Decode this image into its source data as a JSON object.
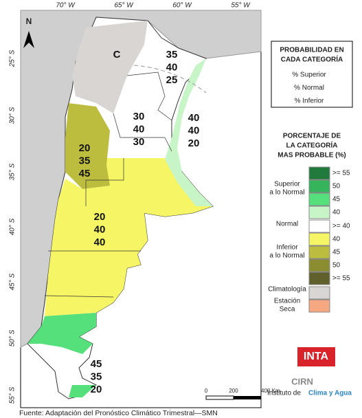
{
  "map": {
    "lon_ticks": [
      "70° W",
      "65° W",
      "60° W",
      "55° W"
    ],
    "lat_ticks": [
      "25° S",
      "30° S",
      "35° S",
      "40° S",
      "45° S",
      "50° S",
      "55° S"
    ],
    "north": "N",
    "regions": [
      {
        "lines": [
          "C"
        ]
      },
      {
        "lines": [
          35,
          40,
          25
        ]
      },
      {
        "lines": [
          30,
          40,
          30
        ]
      },
      {
        "lines": [
          40,
          40,
          20
        ]
      },
      {
        "lines": [
          20,
          35,
          45
        ]
      },
      {
        "lines": [
          20,
          40,
          40
        ]
      },
      {
        "lines": [
          45,
          35,
          20
        ]
      }
    ],
    "scale_bar": [
      "0",
      "200",
      "400 Km"
    ]
  },
  "legend": {
    "box_title": [
      "PROBABILIDAD EN",
      "CADA CATEGORÍA"
    ],
    "box_items": [
      "% Superior",
      "% Normal",
      "% Inferior"
    ],
    "title": [
      "PORCENTAJE DE",
      "LA CATEGORÍA",
      "MAS PROBABLE (%)"
    ],
    "swatches": [
      {
        "label": ">= 55",
        "color": "#1f7a3c"
      },
      {
        "label": "50",
        "color": "#35b45c"
      },
      {
        "label": "45",
        "color": "#55e07c"
      },
      {
        "label": "40",
        "color": "#c8f5c8"
      },
      {
        "label": ">= 40",
        "color": "#ffffff"
      },
      {
        "label": "40",
        "color": "#f5f566"
      },
      {
        "label": "45",
        "color": "#bcbc3e"
      },
      {
        "label": "50",
        "color": "#8c8c30"
      },
      {
        "label": ">= 55",
        "color": "#60602c"
      },
      {
        "label": null,
        "color": "#d9d5d2"
      },
      {
        "label": null,
        "color": "#f5a882"
      }
    ],
    "groups": [
      {
        "lines": [
          "Superior",
          "a lo Normal"
        ]
      },
      {
        "lines": [
          "Normal"
        ]
      },
      {
        "lines": [
          "Inferior",
          "a lo Normal"
        ]
      },
      {
        "lines": [
          "Climatología"
        ]
      },
      {
        "lines": [
          "Estación",
          "Seca"
        ]
      }
    ]
  },
  "logo": {
    "inta": "INTA",
    "cirn": "CIRN",
    "institute": "Instituto de",
    "institute_highlight": "Clima y Agua"
  },
  "footer": "Fuente: Adaptación del Pronóstico Climático Trimestral—SMN"
}
